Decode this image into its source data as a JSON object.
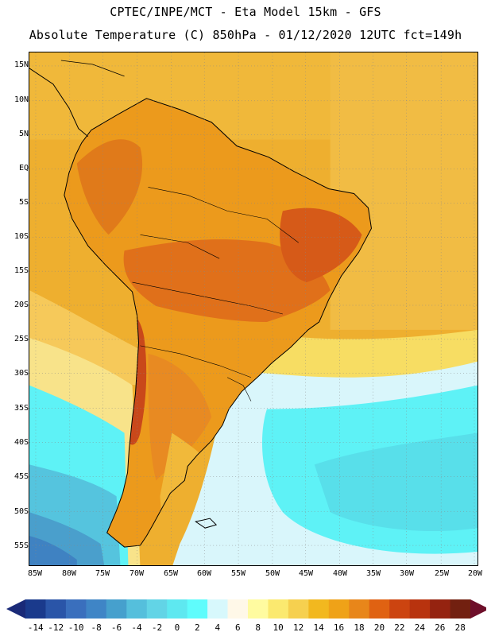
{
  "header": {
    "line1": "CPTEC/INPE/MCT -  Eta Model 15km - GFS",
    "line2": "Absolute Temperature (C) 850hPa - 01/12/2020 12UTC fct=149h"
  },
  "map": {
    "lat_labels": [
      "15N",
      "10N",
      "5N",
      "EQ",
      "5S",
      "10S",
      "15S",
      "20S",
      "25S",
      "30S",
      "35S",
      "40S",
      "45S",
      "50S",
      "55S"
    ],
    "lon_labels": [
      "85W",
      "80W",
      "75W",
      "70W",
      "65W",
      "60W",
      "55W",
      "50W",
      "45W",
      "40W",
      "35W",
      "30W",
      "25W",
      "20W"
    ],
    "extent": {
      "lon": [
        -86,
        -20
      ],
      "lat": [
        -58,
        17
      ]
    }
  },
  "colorbar": {
    "labels": [
      "-14",
      "-12",
      "-10",
      "-8",
      "-6",
      "-4",
      "-2",
      "0",
      "2",
      "4",
      "6",
      "8",
      "10",
      "12",
      "14",
      "16",
      "18",
      "20",
      "22",
      "24",
      "26",
      "28"
    ],
    "colors": [
      "#1a3a8c",
      "#2a55a8",
      "#3a6fbd",
      "#3f85c6",
      "#46a0cd",
      "#55bfdc",
      "#62d4e6",
      "#5ee8f0",
      "#5ffcfc",
      "#d7f8fc",
      "#fff8e8",
      "#fffba0",
      "#fbe96f",
      "#f6d04f",
      "#f2b81f",
      "#efa218",
      "#e8861a",
      "#e06212",
      "#cc4410",
      "#b8330e",
      "#952310",
      "#722010"
    ],
    "left_arrow_color": "#1a2a78",
    "right_arrow_color": "#6e0f2a"
  }
}
